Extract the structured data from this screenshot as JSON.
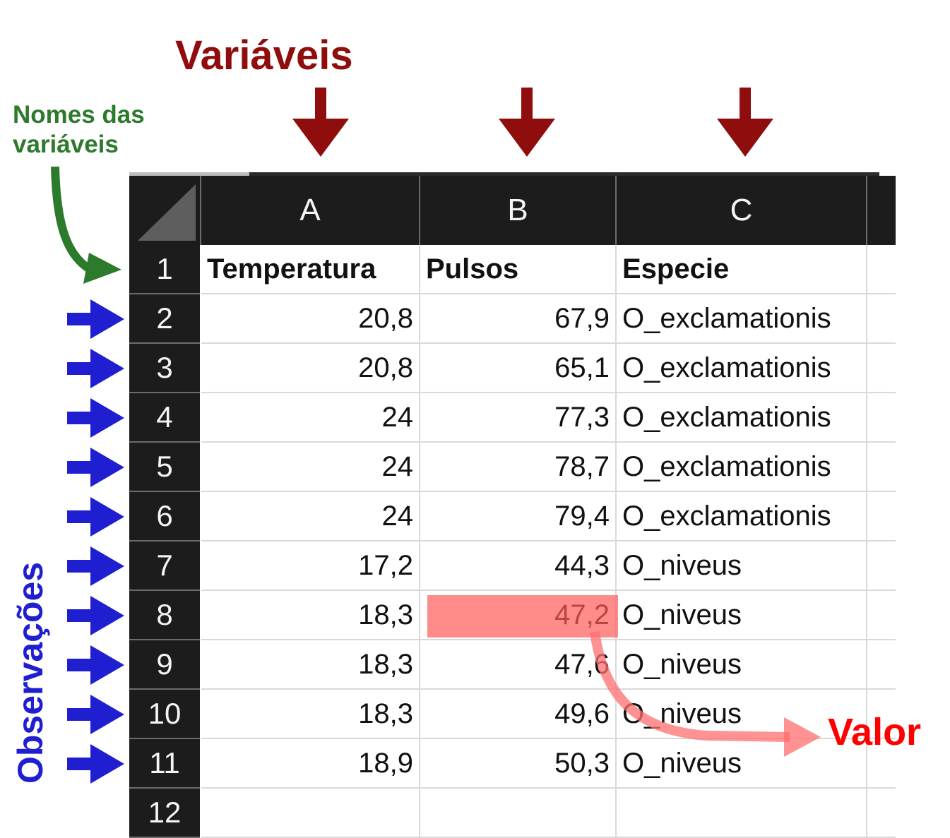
{
  "annotations": {
    "variables_title": "Variáveis",
    "variable_names_label_line1": "Nomes das",
    "variable_names_label_line2": "variáveis",
    "observations_label": "Observações",
    "value_label": "Valor"
  },
  "colors": {
    "variables": "#8f0d0d",
    "variable_names": "#2c7a2c",
    "observations": "#1f1fd1",
    "value": "#ff0000",
    "header_bg": "#1c1c1c"
  },
  "spreadsheet": {
    "columns": [
      "A",
      "B",
      "C"
    ],
    "row_numbers": [
      "1",
      "2",
      "3",
      "4",
      "5",
      "6",
      "7",
      "8",
      "9",
      "10",
      "11",
      "12"
    ],
    "header_row": [
      "Temperatura",
      "Pulsos",
      "Especie"
    ],
    "rows": [
      [
        "20,8",
        "67,9",
        "O_exclamationis"
      ],
      [
        "20,8",
        "65,1",
        "O_exclamationis"
      ],
      [
        "24",
        "77,3",
        "O_exclamationis"
      ],
      [
        "24",
        "78,7",
        "O_exclamationis"
      ],
      [
        "24",
        "79,4",
        "O_exclamationis"
      ],
      [
        "17,2",
        "44,3",
        "O_niveus"
      ],
      [
        "18,3",
        "47,2",
        "O_niveus"
      ],
      [
        "18,3",
        "47,6",
        "O_niveus"
      ],
      [
        "18,3",
        "49,6",
        "O_niveus"
      ],
      [
        "18,9",
        "50,3",
        "O_niveus"
      ]
    ],
    "highlighted_value": "47,2"
  }
}
